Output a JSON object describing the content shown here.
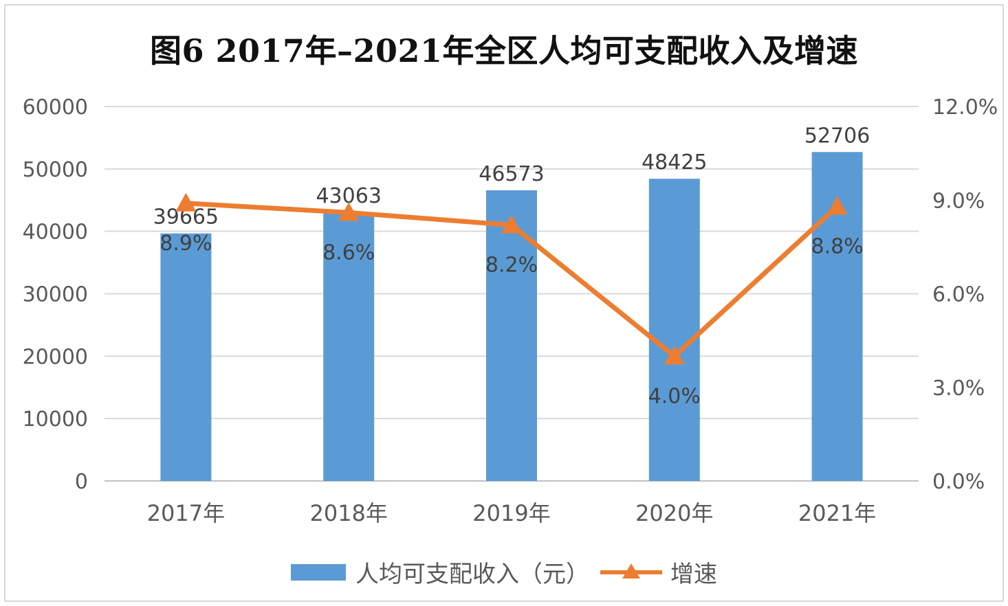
{
  "chart_data": {
    "type": "bar+line",
    "title": "图6  2017年–2021年全区人均可支配收入及增速",
    "categories": [
      "2017年",
      "2018年",
      "2019年",
      "2020年",
      "2021年"
    ],
    "series": [
      {
        "name": "人均可支配收入（元）",
        "type": "bar",
        "axis": "left",
        "values": [
          39665,
          43063,
          46573,
          48425,
          52706
        ],
        "labels": [
          "39665",
          "43063",
          "46573",
          "48425",
          "52706"
        ],
        "color": "#5b9bd5"
      },
      {
        "name": "增速",
        "type": "line",
        "axis": "right",
        "marker": "triangle",
        "values": [
          8.9,
          8.6,
          8.2,
          4.0,
          8.8
        ],
        "labels": [
          "8.9%",
          "8.6%",
          "8.2%",
          "4.0%",
          "8.8%"
        ],
        "color": "#ed7d31"
      }
    ],
    "y_left": {
      "min": 0,
      "max": 60000,
      "ticks": [
        "0",
        "10000",
        "20000",
        "30000",
        "40000",
        "50000",
        "60000"
      ]
    },
    "y_right": {
      "min": 0,
      "max": 12,
      "ticks": [
        "0.0%",
        "3.0%",
        "6.0%",
        "9.0%",
        "12.0%"
      ]
    },
    "grid": true,
    "legend_position": "bottom"
  }
}
